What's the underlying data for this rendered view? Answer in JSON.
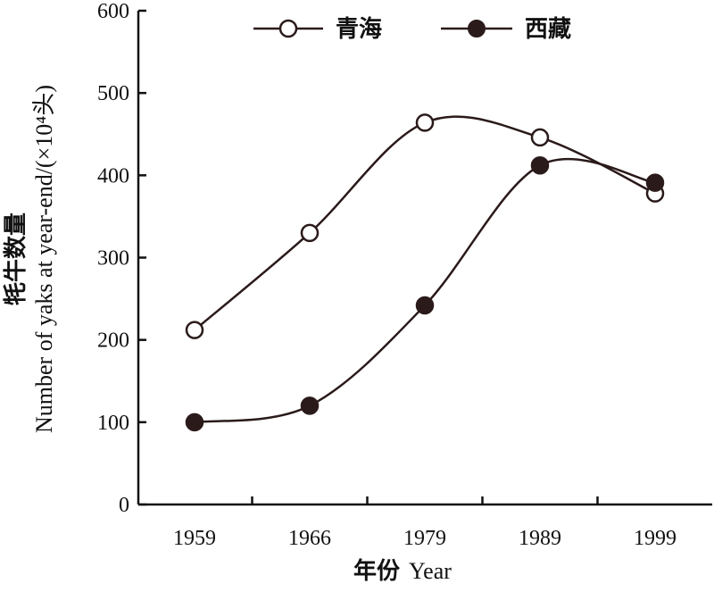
{
  "chart_data": {
    "type": "line",
    "categories": [
      "1959",
      "1966",
      "1979",
      "1989",
      "1999"
    ],
    "series": [
      {
        "name": "青海",
        "values": [
          212,
          330,
          464,
          446,
          378
        ],
        "marker": "open-circle",
        "color": "#2b1a1a"
      },
      {
        "name": "西藏",
        "values": [
          100,
          120,
          242,
          412,
          391
        ],
        "marker": "filled-circle",
        "color": "#2b1a1a"
      }
    ],
    "xlabel": {
      "cn": "年份",
      "en": "Year"
    },
    "ylabel": {
      "cn": "牦牛数量",
      "en": "Number of yaks at year-end/(×10⁴头)"
    },
    "ylim": [
      0,
      600
    ],
    "yticks": [
      0,
      100,
      200,
      300,
      400,
      500,
      600
    ],
    "grid": false,
    "legend_position": "top"
  }
}
